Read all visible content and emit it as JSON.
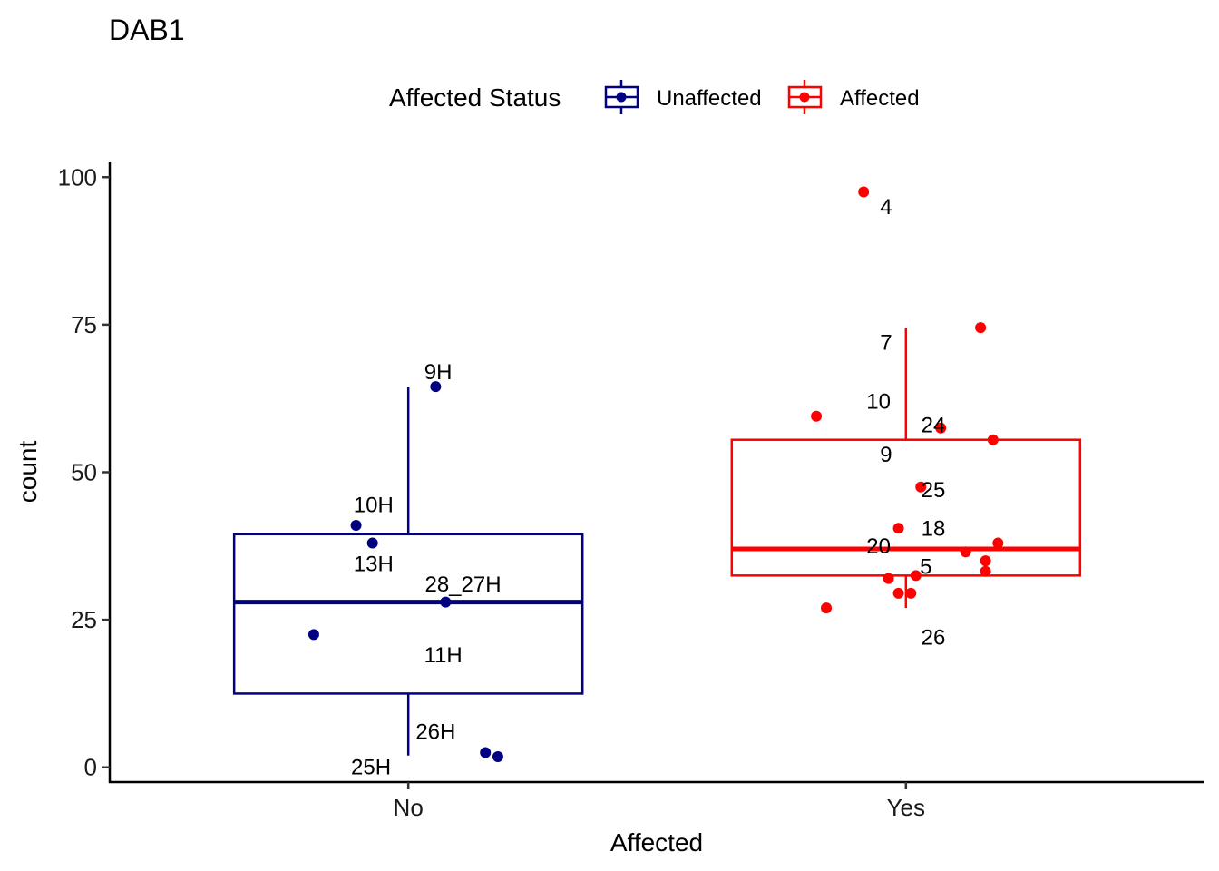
{
  "chart_data": {
    "type": "box",
    "title": "DAB1",
    "xlabel": "Affected",
    "ylabel": "count",
    "ylim": [
      -2.5,
      102.5
    ],
    "yticks": [
      0,
      25,
      50,
      75,
      100
    ],
    "categories": [
      "No",
      "Yes"
    ],
    "legend": {
      "title": "Affected Status",
      "position": "top",
      "entries": [
        {
          "label": "Unaffected",
          "color": "#000080"
        },
        {
          "label": "Affected",
          "color": "#ff0000"
        }
      ]
    },
    "groups": [
      {
        "category": "No",
        "status": "Unaffected",
        "color": "#000080",
        "box": {
          "whisker_low": 2,
          "q1": 12.5,
          "median": 28,
          "q3": 39.5,
          "whisker_high": 64.5
        },
        "points": [
          {
            "x_offset": 0.055,
            "y": 64.5
          },
          {
            "x_offset": -0.105,
            "y": 41
          },
          {
            "x_offset": -0.072,
            "y": 38
          },
          {
            "x_offset": 0.075,
            "y": 28
          },
          {
            "x_offset": -0.19,
            "y": 22.5
          },
          {
            "x_offset": 0.155,
            "y": 2.5
          },
          {
            "x_offset": 0.18,
            "y": 1.8
          }
        ],
        "labels": [
          {
            "text": "9H",
            "x_offset": 0.06,
            "y": 67
          },
          {
            "text": "10H",
            "x_offset": -0.07,
            "y": 44.5
          },
          {
            "text": "13H",
            "x_offset": -0.07,
            "y": 34.5
          },
          {
            "text": "28_27H",
            "x_offset": 0.11,
            "y": 31
          },
          {
            "text": "11H",
            "x_offset": 0.07,
            "y": 19
          },
          {
            "text": "26H",
            "x_offset": 0.055,
            "y": 6
          },
          {
            "text": "25H",
            "x_offset": -0.075,
            "y": 0
          }
        ]
      },
      {
        "category": "Yes",
        "status": "Affected",
        "color": "#ff0000",
        "box": {
          "whisker_low": 27,
          "q1": 32.5,
          "median": 37,
          "q3": 55.5,
          "whisker_high": 74.5
        },
        "points": [
          {
            "x_offset": -0.085,
            "y": 97.5
          },
          {
            "x_offset": 0.15,
            "y": 74.5
          },
          {
            "x_offset": -0.18,
            "y": 59.5
          },
          {
            "x_offset": 0.07,
            "y": 57.5
          },
          {
            "x_offset": 0.175,
            "y": 55.5
          },
          {
            "x_offset": 0.03,
            "y": 47.5
          },
          {
            "x_offset": -0.015,
            "y": 40.5
          },
          {
            "x_offset": 0.185,
            "y": 38
          },
          {
            "x_offset": 0.12,
            "y": 36.5
          },
          {
            "x_offset": 0.16,
            "y": 35
          },
          {
            "x_offset": 0.16,
            "y": 33.2
          },
          {
            "x_offset": 0.02,
            "y": 32.5
          },
          {
            "x_offset": -0.035,
            "y": 32
          },
          {
            "x_offset": -0.015,
            "y": 29.5
          },
          {
            "x_offset": 0.01,
            "y": 29.5
          },
          {
            "x_offset": -0.16,
            "y": 27
          }
        ],
        "labels": [
          {
            "text": "4",
            "x_offset": -0.04,
            "y": 95
          },
          {
            "text": "7",
            "x_offset": -0.04,
            "y": 72
          },
          {
            "text": "10",
            "x_offset": -0.055,
            "y": 62
          },
          {
            "text": "24",
            "x_offset": 0.055,
            "y": 58
          },
          {
            "text": "9",
            "x_offset": -0.04,
            "y": 53
          },
          {
            "text": "25",
            "x_offset": 0.055,
            "y": 47
          },
          {
            "text": "18",
            "x_offset": 0.055,
            "y": 40.5
          },
          {
            "text": "20",
            "x_offset": -0.055,
            "y": 37.5
          },
          {
            "text": "5",
            "x_offset": 0.04,
            "y": 34
          },
          {
            "text": "26",
            "x_offset": 0.055,
            "y": 22
          }
        ]
      }
    ]
  }
}
